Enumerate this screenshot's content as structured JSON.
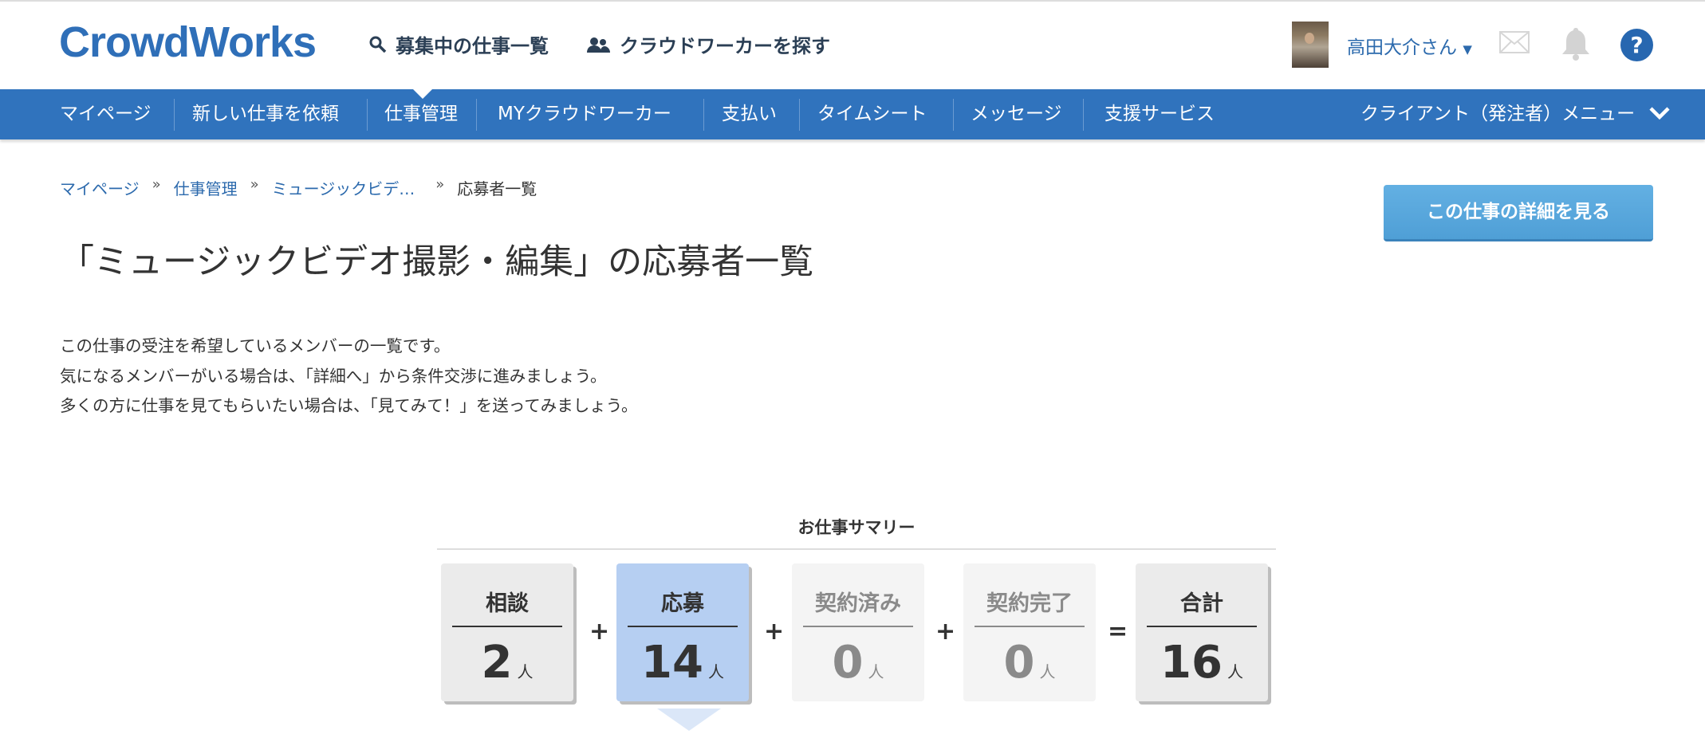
{
  "header": {
    "logo": "CrowdWorks",
    "search_jobs": "募集中の仕事一覧",
    "find_workers": "クラウドワーカーを探す",
    "user_name": "高田大介さん",
    "help": "?"
  },
  "nav": {
    "items": [
      "マイページ",
      "新しい仕事を依頼",
      "仕事管理",
      "MYクラウドワーカー",
      "支払い",
      "タイムシート",
      "メッセージ",
      "支援サービス"
    ],
    "active": "仕事管理",
    "client_menu": "クライアント（発注者）メニュー",
    "accent": "#3073bd"
  },
  "breadcrumb": [
    "マイページ",
    "仕事管理",
    "ミュージックビデ…",
    "応募者一覧"
  ],
  "breadcrumb_sep": "»",
  "detail_button": "この仕事の詳細を見る",
  "page_title": "「ミュージックビデオ撮影・編集」の応募者一覧",
  "description": [
    "この仕事の受注を希望しているメンバーの一覧です。",
    "気になるメンバーがいる場合は、「詳細へ」から条件交渉に進みましょう。",
    "多くの方に仕事を見てもらいたい場合は、「見てみて！」を送ってみましょう。"
  ],
  "summary": {
    "title": "お仕事サマリー",
    "unit": "人",
    "boxes": [
      {
        "label": "相談",
        "value": "2"
      },
      {
        "label": "応募",
        "value": "14"
      },
      {
        "label": "契約済み",
        "value": "0"
      },
      {
        "label": "契約完了",
        "value": "0"
      },
      {
        "label": "合計",
        "value": "16"
      }
    ],
    "operators": [
      "+",
      "+",
      "+",
      "="
    ]
  }
}
